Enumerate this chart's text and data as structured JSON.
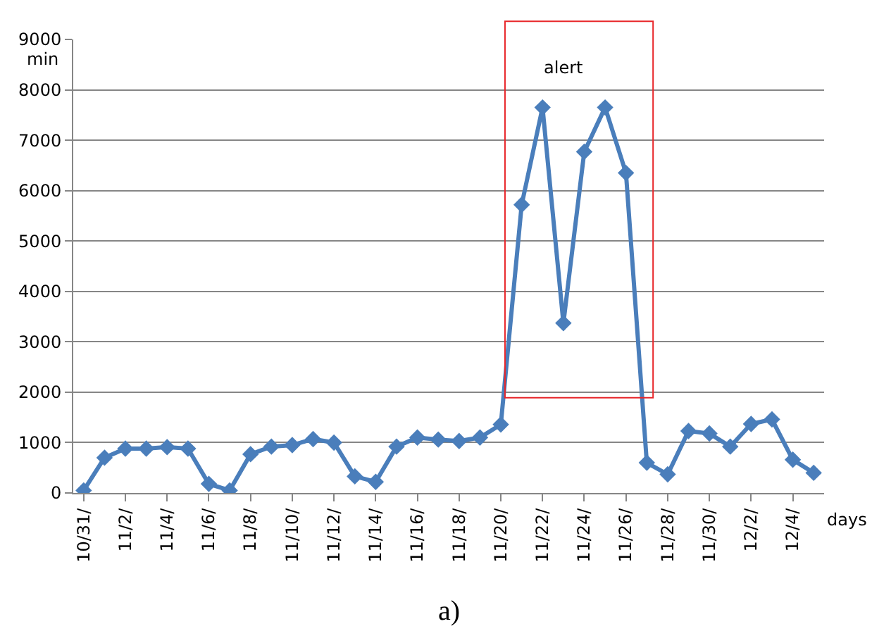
{
  "chart_data": {
    "type": "line",
    "xlabel": "days",
    "ylabel": "min",
    "annotations": [
      "alert",
      "a)"
    ],
    "categories": [
      "10/31/",
      null,
      "11/2/",
      null,
      "11/4/",
      null,
      "11/6/",
      null,
      "11/8/",
      null,
      "11/10/",
      null,
      "11/12/",
      null,
      "11/14/",
      null,
      "11/16/",
      null,
      "11/18/",
      null,
      "11/20/",
      null,
      "11/22/",
      null,
      "11/24/",
      null,
      "11/26/",
      null,
      "11/28/",
      null,
      "11/30/",
      null,
      "12/2/",
      null,
      "12/4/",
      null
    ],
    "series": [
      {
        "color": "#4a7ebb",
        "values": [
          50,
          700,
          880,
          880,
          910,
          880,
          180,
          50,
          770,
          920,
          950,
          1070,
          1000,
          330,
          220,
          920,
          1100,
          1060,
          1030,
          1100,
          1360,
          5720,
          7650,
          3370,
          6770,
          7650,
          6350,
          600,
          370,
          1230,
          1180,
          920,
          1370,
          1460,
          660,
          400
        ]
      }
    ],
    "ylim": [
      0,
      9000
    ],
    "yticks": [
      0,
      1000,
      2000,
      3000,
      4000,
      5000,
      6000,
      7000,
      8000,
      9000
    ],
    "grid": "y",
    "legend": false,
    "marker": "diamond",
    "line_style": "solid"
  }
}
